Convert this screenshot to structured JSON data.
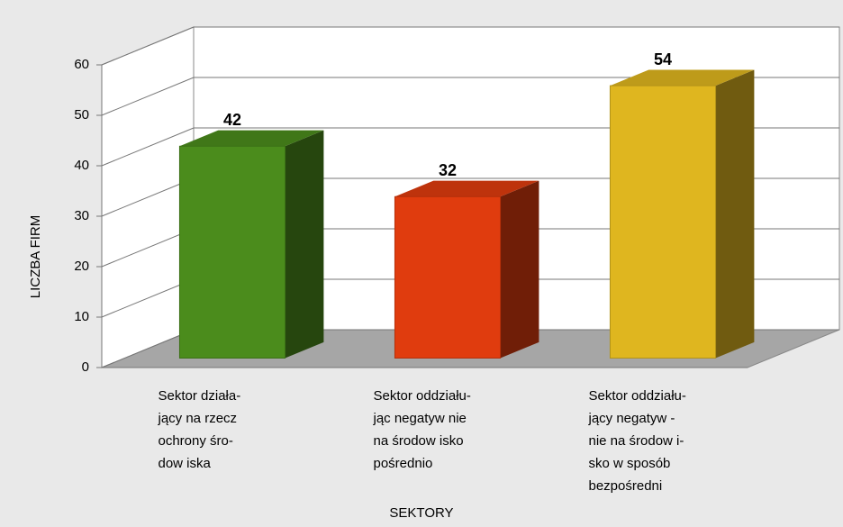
{
  "chart_data": {
    "type": "bar3d",
    "categories": [
      [
        "Sektor działa-",
        "jący na rzecz",
        "ochrony śro-",
        "dow iska"
      ],
      [
        "Sektor oddziału-",
        "jąc negatyw nie",
        "na środow isko",
        "pośrednio"
      ],
      [
        "Sektor oddziału-",
        "jący negatyw -",
        "nie na środow i-",
        "sko w  sposób",
        "bezpośredni"
      ]
    ],
    "values": [
      42,
      32,
      54
    ],
    "colors": [
      "#4b8c1c",
      "#e03c0e",
      "#dfb61f"
    ],
    "ylim": [
      0,
      60
    ],
    "yticks": [
      0,
      10,
      20,
      30,
      40,
      50,
      60
    ],
    "xlabel": "SEKTORY",
    "ylabel": "LICZBA FIRM",
    "grid": true
  }
}
